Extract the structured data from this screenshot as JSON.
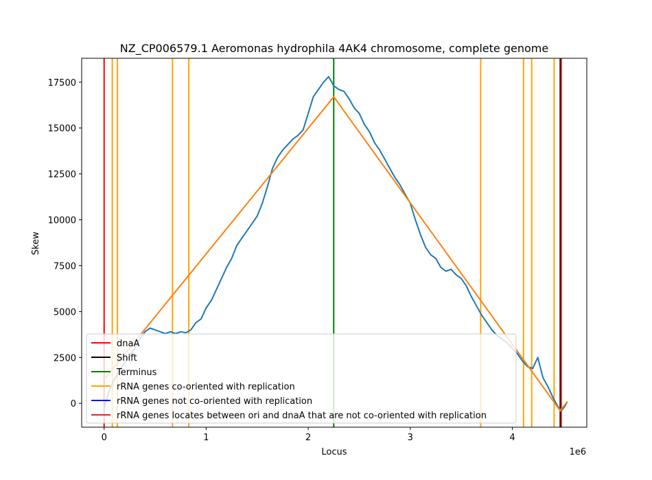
{
  "chart_data": {
    "type": "line",
    "title": "NZ_CP006579.1 Aeromonas hydrophila 4AK4 chromosome, complete genome",
    "xlabel": "Locus",
    "ylabel": "Skew",
    "x_offset_label": "1e6",
    "xlim": [
      -220000,
      4730000
    ],
    "ylim": [
      -1300,
      18800
    ],
    "x_ticks": [
      0,
      1000000,
      2000000,
      3000000,
      4000000
    ],
    "x_tick_labels": [
      "0",
      "1",
      "2",
      "3",
      "4"
    ],
    "y_ticks": [
      0,
      2500,
      5000,
      7500,
      10000,
      12500,
      15000,
      17500
    ],
    "y_tick_labels": [
      "0",
      "2500",
      "5000",
      "7500",
      "10000",
      "12500",
      "15000",
      "17500"
    ],
    "grid": false,
    "legend_position": "lower-left",
    "colors": {
      "skew": "#1f77b4",
      "fit": "#ff7f0e",
      "dnaA": "#ff0000",
      "shift": "#000000",
      "terminus": "#008000",
      "rrna_co": "#ffa500",
      "rrna_not_co": "#0000ff",
      "rrna_between": "#d62728"
    },
    "skew_series": {
      "x": [
        0,
        50000,
        100000,
        150000,
        200000,
        250000,
        300000,
        350000,
        400000,
        450000,
        500000,
        550000,
        600000,
        650000,
        700000,
        750000,
        800000,
        850000,
        900000,
        950000,
        1000000,
        1050000,
        1100000,
        1150000,
        1200000,
        1250000,
        1300000,
        1350000,
        1400000,
        1450000,
        1500000,
        1550000,
        1600000,
        1650000,
        1700000,
        1750000,
        1800000,
        1850000,
        1900000,
        1950000,
        2000000,
        2050000,
        2100000,
        2150000,
        2200000,
        2250000,
        2300000,
        2350000,
        2400000,
        2450000,
        2500000,
        2550000,
        2600000,
        2650000,
        2700000,
        2750000,
        2800000,
        2850000,
        2900000,
        2950000,
        3000000,
        3050000,
        3100000,
        3150000,
        3200000,
        3250000,
        3300000,
        3350000,
        3400000,
        3450000,
        3500000,
        3550000,
        3600000,
        3650000,
        3700000,
        3750000,
        3800000,
        3850000,
        3900000,
        3950000,
        4000000,
        4050000,
        4100000,
        4150000,
        4200000,
        4250000,
        4300000,
        4350000,
        4400000,
        4450000,
        4480000,
        4510000,
        4540000
      ],
      "y": [
        -300,
        700,
        1300,
        1800,
        2200,
        2600,
        3000,
        3500,
        3900,
        4100,
        4000,
        3900,
        3800,
        3900,
        3800,
        3900,
        3850,
        4000,
        4400,
        4600,
        5200,
        5600,
        6200,
        6800,
        7400,
        7900,
        8600,
        9000,
        9400,
        9800,
        10200,
        10900,
        11800,
        12800,
        13400,
        13800,
        14100,
        14400,
        14600,
        14900,
        15800,
        16700,
        17100,
        17500,
        17800,
        17300,
        17100,
        17000,
        16600,
        16100,
        15800,
        15200,
        14800,
        14200,
        13800,
        13300,
        12800,
        12300,
        11900,
        11400,
        10900,
        10000,
        9200,
        8500,
        8100,
        7900,
        7400,
        7200,
        7300,
        7000,
        6800,
        6400,
        5800,
        5300,
        4800,
        4400,
        4000,
        3700,
        3500,
        3300,
        3000,
        2700,
        2300,
        2000,
        1900,
        2500,
        1400,
        900,
        300,
        -200,
        -400,
        -200,
        100
      ]
    },
    "fit_series": {
      "x": [
        0,
        2250000,
        4470000,
        4540000
      ],
      "y": [
        1300,
        16700,
        -400,
        100
      ]
    },
    "vlines": {
      "dnaA": [
        0
      ],
      "shift": [
        4470000
      ],
      "terminus": [
        2250000
      ],
      "rrna_co": [
        80000,
        130000,
        670000,
        830000,
        3690000,
        4110000,
        4190000,
        4410000
      ],
      "rrna_between": [
        4480000
      ]
    },
    "legend": [
      {
        "key": "dnaA",
        "label": "dnaA"
      },
      {
        "key": "shift",
        "label": "Shift"
      },
      {
        "key": "terminus",
        "label": "Terminus"
      },
      {
        "key": "rrna_co",
        "label": "rRNA genes co-oriented with replication"
      },
      {
        "key": "rrna_not_co",
        "label": "rRNA genes not co-oriented with replication"
      },
      {
        "key": "rrna_between",
        "label": "rRNA genes locates between ori and dnaA that are not co-oriented with replication"
      }
    ]
  }
}
